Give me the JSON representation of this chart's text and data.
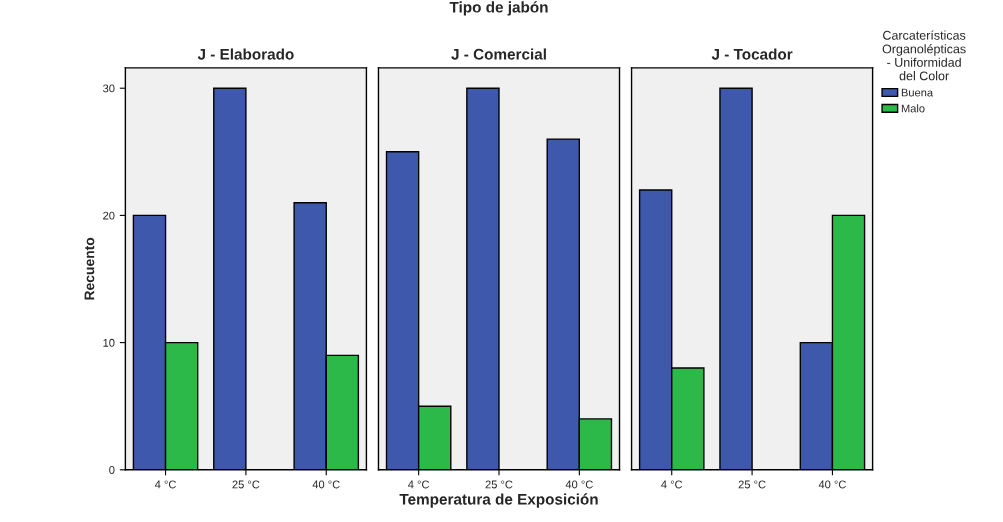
{
  "chart_data": [
    {
      "type": "bar",
      "title": "J - Elaborado",
      "ylabel": "Recuento",
      "legend_title": "Carcaterísticas\nOrganolépticas\n- Uniformidad\ndel Color",
      "categories": [
        "4 °C",
        "25 °C",
        "40 °C"
      ],
      "series": [
        {
          "name": "Buena",
          "color": "#3e58ac",
          "values": [
            20,
            30,
            21
          ]
        },
        {
          "name": "Malo",
          "color": "#2db84a",
          "values": [
            10,
            0,
            9
          ]
        }
      ],
      "ylim": [
        0,
        31.6
      ],
      "yticks": [
        0,
        10,
        20,
        30
      ],
      "grid": false,
      "legend": "right"
    },
    {
      "type": "bar",
      "title": "J - Comercial",
      "xlabel": "Temperatura de Exposición",
      "annotations": [
        "Tipo de jabón"
      ],
      "categories": [
        "4 °C",
        "25 °C",
        "40 °C"
      ],
      "series": [
        {
          "color": "#3e58ac",
          "values": [
            25,
            30,
            26
          ]
        },
        {
          "color": "#2db84a",
          "values": [
            5,
            0,
            4
          ]
        }
      ],
      "ylim": [
        0,
        31.6
      ],
      "tick_labels": "x",
      "grid": false,
      "legend": false
    },
    {
      "type": "bar",
      "title": "J - Tocador",
      "categories": [
        "4 °C",
        "25 °C",
        "40 °C"
      ],
      "series": [
        {
          "color": "#3e58ac",
          "values": [
            22,
            30,
            10
          ]
        },
        {
          "color": "#2db84a",
          "values": [
            8,
            0,
            20
          ]
        }
      ],
      "ylim": [
        0,
        31.6
      ],
      "tick_labels": "x",
      "grid": false,
      "legend": false
    }
  ]
}
